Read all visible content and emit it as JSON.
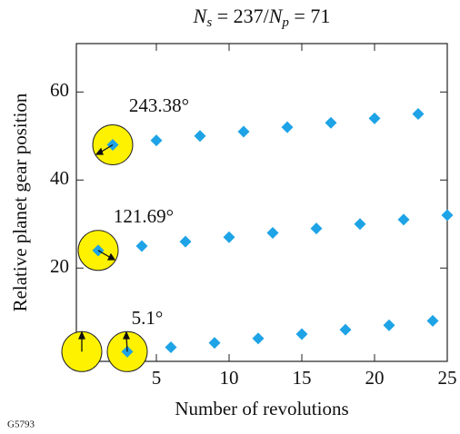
{
  "chart_data": {
    "type": "scatter",
    "title": {
      "parts": [
        "N",
        "s",
        " = 237/",
        "N",
        "p",
        " = 71"
      ]
    },
    "x_label": "Number of revolutions",
    "y_label": "Relative planet gear position",
    "series": [
      {
        "color": "#1ea3e6",
        "x": [
          3,
          6,
          9,
          12,
          15,
          18,
          21,
          24,
          1,
          4,
          7,
          10,
          13,
          16,
          19,
          22,
          25,
          2,
          5,
          8,
          11,
          14,
          17,
          20,
          23
        ],
        "values": [
          1,
          2,
          3,
          4,
          5,
          6,
          7,
          8,
          24,
          25,
          26,
          27,
          28,
          29,
          30,
          31,
          32,
          48,
          49,
          50,
          51,
          52,
          53,
          54,
          55
        ]
      }
    ],
    "xlim": [
      -0.5,
      25
    ],
    "xticks": [
      5,
      10,
      15,
      20,
      25
    ],
    "ylim": [
      -1.2,
      71
    ],
    "yticks": [
      20,
      40,
      60
    ],
    "annotations": [
      "243.38°",
      "121.69°",
      "5.1°"
    ],
    "figure_id": "G5793"
  }
}
